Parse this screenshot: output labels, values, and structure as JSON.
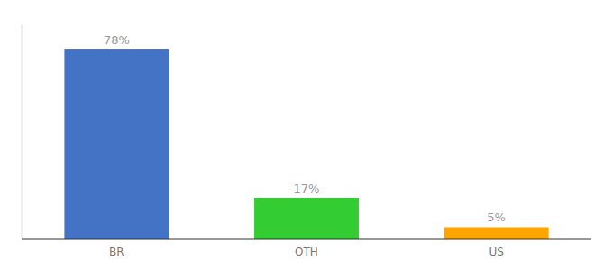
{
  "chart_data": {
    "type": "bar",
    "categories": [
      "BR",
      "OTH",
      "US"
    ],
    "values": [
      78,
      17,
      5
    ],
    "value_labels": [
      "78%",
      "17%",
      "5%"
    ],
    "colors": [
      "#4472C4",
      "#33CC33",
      "#FFA500"
    ],
    "ylim": [
      0,
      88
    ],
    "data_labels": true,
    "tick_labels": "x",
    "grid": false
  }
}
